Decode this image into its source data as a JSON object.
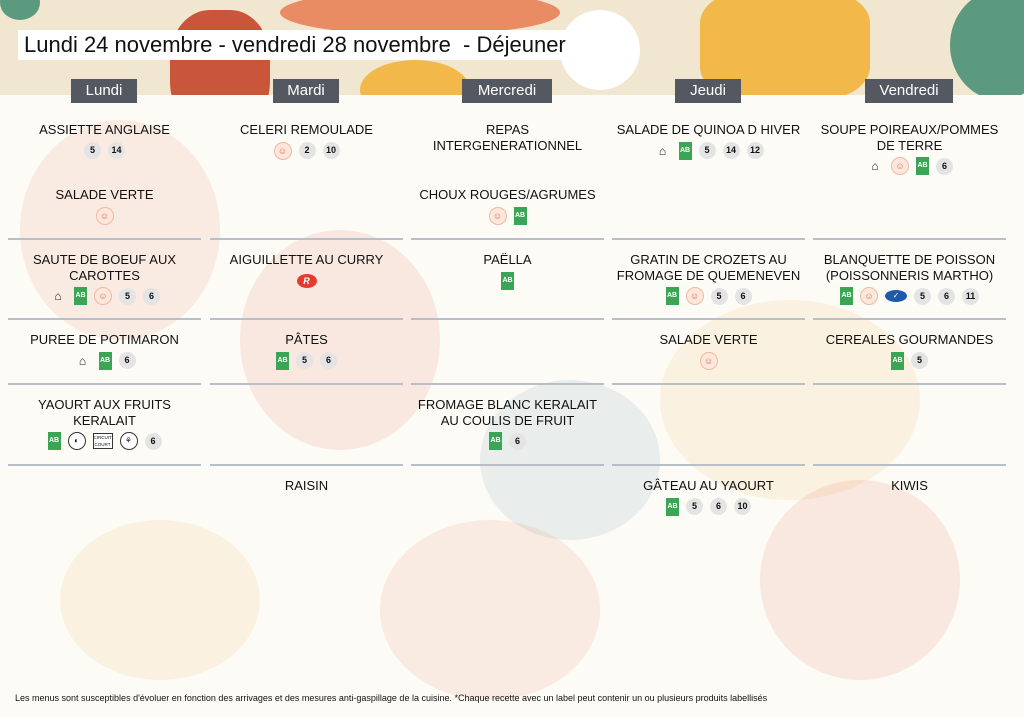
{
  "title": "Lundi 24 novembre - vendredi 28 novembre  - Déjeuner",
  "colors": {
    "day_header": "#545860",
    "bio": "#3aa655",
    "separator": "#b8bfc8"
  },
  "days": [
    "Lundi",
    "Mardi",
    "Mercredi",
    "Jeudi",
    "Vendredi"
  ],
  "rows": [
    [
      [
        {
          "name": "ASSIETTE ANGLAISE",
          "labels": [
            "5",
            "14"
          ]
        },
        {
          "name": "SALADE VERTE",
          "labels": [
            "local"
          ]
        }
      ],
      [
        {
          "name": "CELERI REMOULADE",
          "labels": [
            "local",
            "2",
            "10"
          ]
        }
      ],
      [
        {
          "name": "REPAS INTERGENERATIONNEL",
          "labels": []
        },
        {
          "name": "CHOUX ROUGES/AGRUMES",
          "labels": [
            "local",
            "bio"
          ]
        }
      ],
      [
        {
          "name": "SALADE DE QUINOA D HIVER",
          "labels": [
            "fait-maison",
            "bio",
            "5",
            "14",
            "12"
          ]
        }
      ],
      [
        {
          "name": "SOUPE POIREAUX/POMMES DE TERRE",
          "labels": [
            "fait-maison",
            "local",
            "bio",
            "6"
          ]
        }
      ]
    ],
    [
      [
        {
          "name": "SAUTE DE BOEUF AUX CAROTTES",
          "labels": [
            "fait-maison",
            "bio",
            "local",
            "5",
            "6"
          ]
        }
      ],
      [
        {
          "name": "AIGUILLETTE AU CURRY",
          "labels": [
            "label-rouge"
          ]
        }
      ],
      [
        {
          "name": "PAËLLA",
          "labels": [
            "bio"
          ]
        }
      ],
      [
        {
          "name": "GRATIN DE CROZETS AU FROMAGE DE QUEMENEVEN",
          "labels": [
            "bio",
            "local",
            "5",
            "6"
          ]
        }
      ],
      [
        {
          "name": "BLANQUETTE DE POISSON (POISSONNERIS MARTHO)",
          "labels": [
            "bio",
            "local",
            "msc",
            "5",
            "6",
            "11"
          ]
        }
      ]
    ],
    [
      [
        {
          "name": "PUREE DE POTIMARON",
          "labels": [
            "fait-maison",
            "bio",
            "6"
          ]
        }
      ],
      [
        {
          "name": "PÂTES",
          "labels": [
            "bio",
            "5",
            "6"
          ]
        }
      ],
      [],
      [
        {
          "name": "SALADE VERTE",
          "labels": [
            "local"
          ]
        }
      ],
      [
        {
          "name": "CEREALES GOURMANDES",
          "labels": [
            "bio",
            "5"
          ]
        }
      ]
    ],
    [
      [
        {
          "name": "YAOURT  AUX FRUITS KERALAIT",
          "labels": [
            "bio",
            "producteur",
            "circuit-court",
            "ferme",
            "6"
          ]
        }
      ],
      [],
      [
        {
          "name": "FROMAGE BLANC KERALAIT AU COULIS DE FRUIT",
          "labels": [
            "bio",
            "6"
          ]
        }
      ],
      [],
      []
    ],
    [
      [],
      [
        {
          "name": "RAISIN",
          "labels": []
        }
      ],
      [],
      [
        {
          "name": "GÂTEAU AU YAOURT",
          "labels": [
            "bio",
            "5",
            "6",
            "10"
          ]
        }
      ],
      [
        {
          "name": "KIWIS",
          "labels": []
        }
      ]
    ]
  ],
  "label_text": {
    "bio": "AB",
    "label-rouge": "R",
    "circuit-court": "CIRCUIT COURT"
  },
  "footer": "Les menus sont susceptibles d'évoluer en fonction des arrivages et des mesures anti-gaspillage de la cuisine. *Chaque recette avec un label peut contenir un ou plusieurs produits labellisés"
}
